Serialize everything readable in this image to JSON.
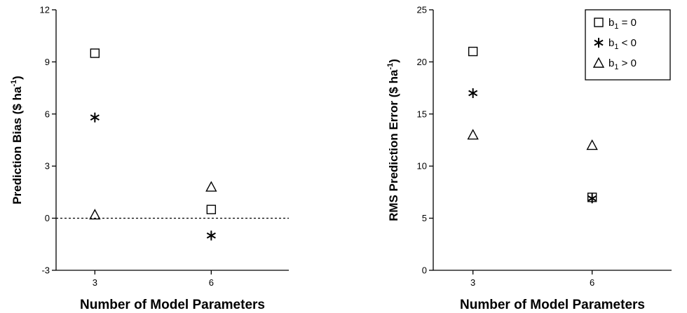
{
  "chart_data": [
    {
      "type": "scatter",
      "xlabel": "Number of Model Parameters",
      "ylabel_main": "Prediction Bias ($ ha",
      "ylabel_sup": "-1",
      "ylabel_close": ")",
      "xlim": [
        2,
        8
      ],
      "ylim": [
        -3,
        12
      ],
      "xticks": [
        3,
        6
      ],
      "yticks": [
        -3,
        0,
        3,
        6,
        9,
        12
      ],
      "reference_line": {
        "y": 0,
        "style": "dotted"
      },
      "series": [
        {
          "name": "b1 = 0",
          "marker": "square",
          "points": [
            {
              "x": 3,
              "y": 9.5
            },
            {
              "x": 6,
              "y": 0.5
            }
          ]
        },
        {
          "name": "b1 < 0",
          "marker": "asterisk",
          "points": [
            {
              "x": 3,
              "y": 5.8
            },
            {
              "x": 6,
              "y": -1.0
            }
          ]
        },
        {
          "name": "b1 > 0",
          "marker": "triangle",
          "points": [
            {
              "x": 3,
              "y": 0.2
            },
            {
              "x": 6,
              "y": 1.8
            }
          ]
        }
      ]
    },
    {
      "type": "scatter",
      "xlabel": "Number of Model Parameters",
      "ylabel_main": "RMS Prediction Error ($ ha",
      "ylabel_sup": "-1",
      "ylabel_close": ")",
      "xlim": [
        2,
        8
      ],
      "ylim": [
        0,
        25
      ],
      "xticks": [
        3,
        6
      ],
      "yticks": [
        0,
        5,
        10,
        15,
        20,
        25
      ],
      "legend": {
        "position": "top-right",
        "entries": [
          {
            "marker": "square",
            "base": "b",
            "sub": "1",
            "rest": " = 0"
          },
          {
            "marker": "asterisk",
            "base": "b",
            "sub": "1",
            "rest": " < 0"
          },
          {
            "marker": "triangle",
            "base": "b",
            "sub": "1",
            "rest": " > 0"
          }
        ]
      },
      "series": [
        {
          "name": "b1 = 0",
          "marker": "square",
          "points": [
            {
              "x": 3,
              "y": 21
            },
            {
              "x": 6,
              "y": 7
            }
          ]
        },
        {
          "name": "b1 < 0",
          "marker": "asterisk",
          "points": [
            {
              "x": 3,
              "y": 17
            },
            {
              "x": 6,
              "y": 6.9
            }
          ]
        },
        {
          "name": "b1 > 0",
          "marker": "triangle",
          "points": [
            {
              "x": 3,
              "y": 13
            },
            {
              "x": 6,
              "y": 12
            }
          ]
        }
      ]
    }
  ]
}
